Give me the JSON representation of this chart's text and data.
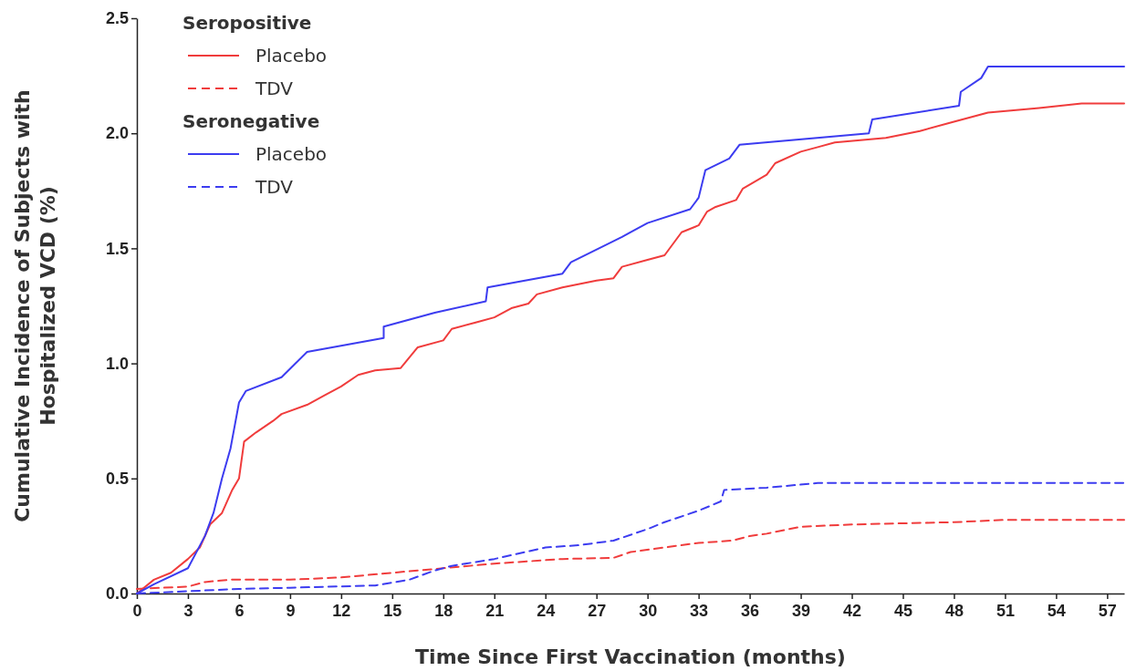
{
  "chart_data": {
    "type": "line",
    "xlabel": "Time Since First Vaccination (months)",
    "ylabel": "Cumulative Incidence of Subjects with\nHospitalized VCD (%)",
    "xlim": [
      0,
      58
    ],
    "xticks": [
      0,
      3,
      6,
      9,
      12,
      15,
      18,
      21,
      24,
      27,
      30,
      33,
      36,
      39,
      42,
      45,
      48,
      51,
      54,
      57
    ],
    "ylim": [
      0,
      2.5
    ],
    "yticks": [
      {
        "value": 0,
        "label": "0.0"
      },
      {
        "value": 0.5,
        "label": "0.5"
      },
      {
        "value": 1,
        "label": "1.0"
      },
      {
        "value": 1.5,
        "label": "1.5"
      },
      {
        "value": 2,
        "label": "2.0"
      },
      {
        "value": 2.5,
        "label": "2.5"
      }
    ],
    "legend": "top left",
    "grid": false,
    "marker": "none",
    "annotations": [
      "Seropositive",
      "Seronegative"
    ],
    "series": [
      {
        "name": "Placebo",
        "color": "#f03c3c",
        "line_style": "solid",
        "x": [
          0,
          1,
          2,
          3,
          3.7,
          4.3,
          5,
          5.6,
          6,
          6.3,
          7,
          8,
          8.5,
          10,
          11,
          12,
          13,
          14,
          15.5,
          16.5,
          18,
          18.5,
          20,
          21,
          22,
          23,
          23.5,
          25,
          27,
          28,
          28.5,
          30,
          31,
          32,
          33,
          33.5,
          34,
          35.2,
          35.6,
          37,
          37.5,
          39,
          40,
          41,
          44,
          46,
          48,
          50,
          53,
          55.5,
          58
        ],
        "values": [
          0,
          0.06,
          0.09,
          0.15,
          0.2,
          0.3,
          0.35,
          0.45,
          0.5,
          0.66,
          0.7,
          0.75,
          0.78,
          0.82,
          0.86,
          0.9,
          0.95,
          0.97,
          0.98,
          1.07,
          1.1,
          1.15,
          1.18,
          1.2,
          1.24,
          1.26,
          1.3,
          1.33,
          1.36,
          1.37,
          1.42,
          1.45,
          1.47,
          1.57,
          1.6,
          1.66,
          1.68,
          1.71,
          1.76,
          1.82,
          1.87,
          1.92,
          1.94,
          1.96,
          1.98,
          2.01,
          2.05,
          2.09,
          2.11,
          2.13,
          2.13
        ]
      },
      {
        "name": "TDV",
        "color": "#f03c3c",
        "line_style": "dashed",
        "x": [
          0,
          3,
          4,
          5.5,
          9,
          12,
          15,
          18,
          21,
          25,
          28,
          29,
          31,
          33,
          35,
          36,
          37,
          39,
          42,
          48,
          51,
          58
        ],
        "values": [
          0.02,
          0.03,
          0.05,
          0.06,
          0.06,
          0.07,
          0.09,
          0.11,
          0.13,
          0.15,
          0.155,
          0.18,
          0.2,
          0.22,
          0.23,
          0.25,
          0.26,
          0.29,
          0.3,
          0.31,
          0.32,
          0.32
        ]
      },
      {
        "name": "Placebo",
        "color": "#3c3cf0",
        "line_style": "solid",
        "x": [
          0,
          1,
          3,
          4,
          4.5,
          5,
          5.5,
          6,
          6.4,
          8.5,
          10,
          14.5,
          14.5,
          17.5,
          20.5,
          20.6,
          25,
          25.5,
          28.5,
          30,
          32.5,
          33,
          33.4,
          34.8,
          35.4,
          43,
          43.2,
          48.3,
          48.4,
          49.6,
          50,
          58
        ],
        "values": [
          0,
          0.04,
          0.11,
          0.25,
          0.35,
          0.5,
          0.63,
          0.83,
          0.88,
          0.94,
          1.05,
          1.11,
          1.16,
          1.22,
          1.27,
          1.33,
          1.39,
          1.44,
          1.55,
          1.61,
          1.67,
          1.72,
          1.84,
          1.89,
          1.95,
          2.0,
          2.06,
          2.12,
          2.18,
          2.24,
          2.29,
          2.29
        ]
      },
      {
        "name": "TDV",
        "color": "#3c3cf0",
        "line_style": "dashed",
        "x": [
          0,
          3,
          6,
          9,
          14,
          16,
          17.5,
          18.5,
          21,
          24,
          26,
          28,
          30,
          31,
          33,
          34.3,
          34.5,
          37,
          40,
          58
        ],
        "values": [
          0,
          0.01,
          0.02,
          0.025,
          0.035,
          0.06,
          0.1,
          0.12,
          0.15,
          0.2,
          0.21,
          0.23,
          0.28,
          0.31,
          0.36,
          0.4,
          0.45,
          0.46,
          0.48,
          0.48
        ]
      }
    ]
  }
}
